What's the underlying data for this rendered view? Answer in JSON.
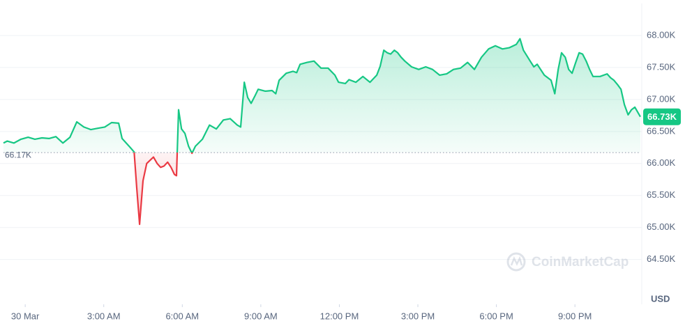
{
  "chart_data": {
    "type": "line",
    "currency": "USD",
    "watermark": "CoinMarketCap",
    "grid": true,
    "up_color": "#16c784",
    "down_color": "#ea3943",
    "reference": {
      "value": 66170,
      "label": "66.17K"
    },
    "current": {
      "value": 66730,
      "label": "66.73K"
    },
    "xlim": [
      -0.83,
      23.5
    ],
    "xticks": [
      {
        "value": 0,
        "label": "30 Mar"
      },
      {
        "value": 3,
        "label": "3:00 AM"
      },
      {
        "value": 6,
        "label": "6:00 AM"
      },
      {
        "value": 9,
        "label": "9:00 AM"
      },
      {
        "value": 12,
        "label": "12:00 PM"
      },
      {
        "value": 15,
        "label": "3:00 PM"
      },
      {
        "value": 18,
        "label": "6:00 PM"
      },
      {
        "value": 21,
        "label": "9:00 PM"
      }
    ],
    "ylim": [
      63800,
      68500
    ],
    "yticks": [
      {
        "value": 64500,
        "label": "64.50K"
      },
      {
        "value": 65000,
        "label": "65.00K"
      },
      {
        "value": 65500,
        "label": "65.50K"
      },
      {
        "value": 66000,
        "label": "66.00K"
      },
      {
        "value": 66500,
        "label": "66.50K"
      },
      {
        "value": 67000,
        "label": "67.00K"
      },
      {
        "value": 67500,
        "label": "67.50K"
      },
      {
        "value": 68000,
        "label": "68.00K"
      }
    ],
    "x": [
      -0.83,
      -0.69,
      -0.43,
      -0.16,
      0.11,
      0.37,
      0.64,
      0.91,
      1.17,
      1.44,
      1.71,
      1.97,
      2.24,
      2.51,
      2.77,
      3.04,
      3.3,
      3.57,
      3.7,
      3.97,
      4.16,
      4.26,
      4.37,
      4.5,
      4.64,
      4.77,
      4.9,
      5.04,
      5.17,
      5.3,
      5.44,
      5.57,
      5.7,
      5.78,
      5.86,
      5.97,
      6.1,
      6.24,
      6.37,
      6.5,
      6.77,
      7.04,
      7.3,
      7.57,
      7.83,
      8.1,
      8.23,
      8.37,
      8.5,
      8.63,
      8.77,
      8.9,
      9.17,
      9.43,
      9.57,
      9.7,
      9.97,
      10.23,
      10.37,
      10.5,
      10.77,
      11.03,
      11.3,
      11.57,
      11.83,
      11.97,
      12.23,
      12.37,
      12.63,
      12.9,
      13.17,
      13.43,
      13.56,
      13.7,
      13.83,
      13.96,
      14.1,
      14.23,
      14.36,
      14.5,
      14.76,
      15.03,
      15.3,
      15.56,
      15.83,
      16.1,
      16.36,
      16.63,
      16.9,
      17.16,
      17.43,
      17.7,
      17.96,
      18.23,
      18.5,
      18.76,
      18.9,
      19.03,
      19.29,
      19.43,
      19.56,
      19.83,
      20.09,
      20.23,
      20.36,
      20.49,
      20.63,
      20.76,
      20.89,
      21.03,
      21.16,
      21.29,
      21.43,
      21.56,
      21.69,
      21.96,
      22.23,
      22.36,
      22.49,
      22.63,
      22.76,
      22.89,
      23.03,
      23.16,
      23.29,
      23.5
    ],
    "values": [
      66320,
      66350,
      66320,
      66380,
      66410,
      66380,
      66400,
      66390,
      66420,
      66320,
      66410,
      66650,
      66570,
      66530,
      66550,
      66570,
      66640,
      66630,
      66390,
      66270,
      66180,
      65620,
      65050,
      65730,
      66000,
      66050,
      66100,
      66000,
      65940,
      65960,
      66020,
      65940,
      65830,
      65810,
      66840,
      66540,
      66470,
      66270,
      66160,
      66270,
      66380,
      66600,
      66540,
      66680,
      66700,
      66600,
      66570,
      67270,
      67030,
      66940,
      67050,
      67160,
      67130,
      67140,
      67090,
      67300,
      67410,
      67440,
      67420,
      67550,
      67580,
      67600,
      67490,
      67490,
      67380,
      67270,
      67250,
      67310,
      67270,
      67360,
      67270,
      67380,
      67520,
      67770,
      67730,
      67710,
      67770,
      67730,
      67660,
      67600,
      67510,
      67470,
      67510,
      67470,
      67380,
      67400,
      67470,
      67490,
      67580,
      67470,
      67660,
      67790,
      67840,
      67790,
      67810,
      67860,
      67950,
      67770,
      67600,
      67510,
      67550,
      67380,
      67300,
      67090,
      67470,
      67730,
      67660,
      67470,
      67410,
      67580,
      67730,
      67710,
      67600,
      67470,
      67360,
      67360,
      67400,
      67340,
      67300,
      67230,
      67160,
      66920,
      66760,
      66840,
      66880,
      66730
    ]
  }
}
